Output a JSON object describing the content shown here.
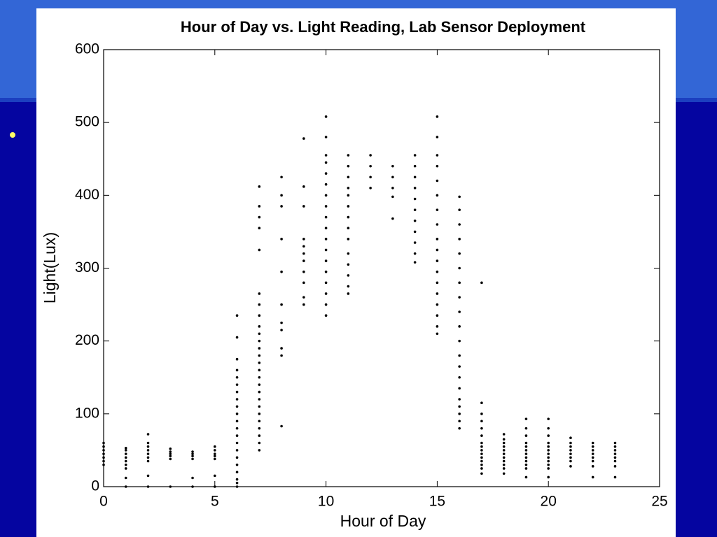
{
  "chart_data": {
    "type": "scatter",
    "title": "Hour of Day vs. Light Reading, Lab Sensor Deployment",
    "xlabel": "Hour of Day",
    "ylabel": "Light(Lux)",
    "color": "#000000",
    "xlim": [
      0,
      25
    ],
    "ylim": [
      0,
      600
    ],
    "xticks": [
      0,
      5,
      10,
      15,
      20,
      25
    ],
    "yticks": [
      0,
      100,
      200,
      300,
      400,
      500,
      600
    ],
    "grid": false,
    "x": [
      0,
      0,
      0,
      0,
      0,
      0,
      0,
      1,
      1,
      1,
      1,
      1,
      1,
      1,
      1,
      1,
      2,
      2,
      2,
      2,
      2,
      2,
      2,
      2,
      2,
      3,
      3,
      3,
      3,
      3,
      3,
      4,
      4,
      4,
      4,
      4,
      4,
      5,
      5,
      5,
      5,
      5,
      5,
      5,
      6,
      6,
      6,
      6,
      6,
      6,
      6,
      6,
      6,
      6,
      6,
      6,
      6,
      6,
      6,
      6,
      6,
      6,
      6,
      6,
      6,
      7,
      7,
      7,
      7,
      7,
      7,
      7,
      7,
      7,
      7,
      7,
      7,
      7,
      7,
      7,
      7,
      7,
      7,
      7,
      7,
      7,
      7,
      7,
      7,
      7,
      7,
      8,
      8,
      8,
      8,
      8,
      8,
      8,
      8,
      8,
      8,
      8,
      9,
      9,
      9,
      9,
      9,
      9,
      9,
      9,
      9,
      9,
      9,
      10,
      10,
      10,
      10,
      10,
      10,
      10,
      10,
      10,
      10,
      10,
      10,
      10,
      10,
      10,
      10,
      10,
      10,
      11,
      11,
      11,
      11,
      11,
      11,
      11,
      11,
      11,
      11,
      11,
      11,
      11,
      11,
      12,
      12,
      12,
      12,
      13,
      13,
      13,
      13,
      13,
      14,
      14,
      14,
      14,
      14,
      14,
      14,
      14,
      14,
      14,
      14,
      15,
      15,
      15,
      15,
      15,
      15,
      15,
      15,
      15,
      15,
      15,
      15,
      15,
      15,
      15,
      15,
      15,
      15,
      16,
      16,
      16,
      16,
      16,
      16,
      16,
      16,
      16,
      16,
      16,
      16,
      16,
      16,
      16,
      16,
      16,
      16,
      16,
      16,
      17,
      17,
      17,
      17,
      17,
      17,
      17,
      17,
      17,
      17,
      17,
      17,
      17,
      17,
      17,
      18,
      18,
      18,
      18,
      18,
      18,
      18,
      18,
      18,
      18,
      18,
      19,
      19,
      19,
      19,
      19,
      19,
      19,
      19,
      19,
      19,
      19,
      19,
      20,
      20,
      20,
      20,
      20,
      20,
      20,
      20,
      20,
      20,
      20,
      20,
      21,
      21,
      21,
      21,
      21,
      21,
      21,
      21,
      22,
      22,
      22,
      22,
      22,
      22,
      22,
      22,
      23,
      23,
      23,
      23,
      23,
      23,
      23,
      23
    ],
    "values": [
      30,
      35,
      40,
      45,
      50,
      55,
      60,
      0,
      12,
      25,
      30,
      35,
      40,
      45,
      50,
      53,
      0,
      15,
      35,
      40,
      45,
      50,
      55,
      60,
      72,
      0,
      38,
      42,
      45,
      48,
      52,
      0,
      12,
      38,
      42,
      45,
      48,
      0,
      15,
      38,
      42,
      45,
      50,
      55,
      0,
      5,
      10,
      20,
      30,
      40,
      50,
      60,
      70,
      80,
      90,
      100,
      110,
      120,
      130,
      140,
      150,
      160,
      175,
      205,
      235,
      50,
      60,
      70,
      80,
      90,
      100,
      110,
      120,
      130,
      140,
      150,
      160,
      170,
      180,
      190,
      200,
      210,
      220,
      235,
      250,
      265,
      325,
      355,
      370,
      385,
      412,
      83,
      180,
      190,
      215,
      225,
      250,
      295,
      340,
      385,
      400,
      425,
      250,
      260,
      280,
      295,
      310,
      320,
      330,
      340,
      385,
      412,
      478,
      235,
      250,
      265,
      280,
      295,
      310,
      325,
      340,
      355,
      370,
      385,
      400,
      415,
      430,
      445,
      455,
      480,
      508,
      265,
      275,
      290,
      305,
      320,
      340,
      355,
      370,
      385,
      400,
      410,
      425,
      440,
      455,
      410,
      425,
      440,
      455,
      368,
      398,
      410,
      425,
      440,
      308,
      320,
      335,
      350,
      365,
      380,
      395,
      410,
      425,
      440,
      455,
      210,
      220,
      235,
      250,
      265,
      280,
      295,
      310,
      325,
      340,
      360,
      380,
      400,
      420,
      440,
      455,
      480,
      508,
      80,
      90,
      100,
      110,
      120,
      135,
      150,
      165,
      180,
      200,
      220,
      240,
      260,
      280,
      300,
      320,
      340,
      360,
      380,
      398,
      18,
      25,
      30,
      35,
      40,
      45,
      50,
      55,
      60,
      70,
      80,
      90,
      100,
      115,
      280,
      18,
      25,
      30,
      35,
      40,
      45,
      50,
      55,
      60,
      65,
      72,
      13,
      25,
      30,
      35,
      40,
      45,
      50,
      55,
      60,
      70,
      80,
      93,
      13,
      25,
      30,
      35,
      40,
      45,
      50,
      55,
      60,
      70,
      80,
      93,
      28,
      35,
      40,
      45,
      50,
      55,
      60,
      67,
      13,
      28,
      35,
      40,
      45,
      50,
      55,
      60,
      13,
      28,
      35,
      40,
      45,
      50,
      55,
      60
    ]
  }
}
